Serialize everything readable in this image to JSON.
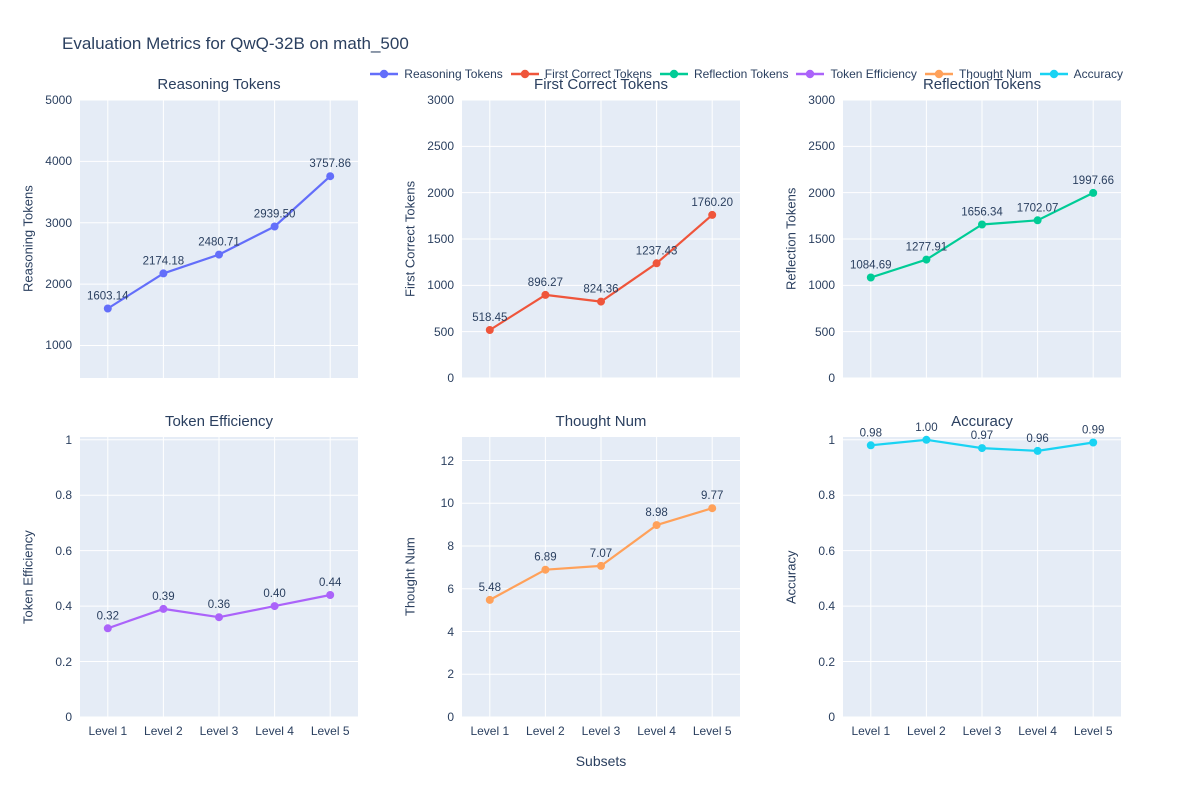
{
  "title": "Evaluation Metrics for QwQ-32B on math_500",
  "xaxis": {
    "title": "Subsets",
    "categories": [
      "Level 1",
      "Level 2",
      "Level 3",
      "Level 4",
      "Level 5"
    ]
  },
  "legend": {
    "items": [
      {
        "label": "Reasoning Tokens",
        "color": "#636EFA"
      },
      {
        "label": "First Correct Tokens",
        "color": "#EF553B"
      },
      {
        "label": "Reflection Tokens",
        "color": "#00CC96"
      },
      {
        "label": "Token Efficiency",
        "color": "#AB63FA"
      },
      {
        "label": "Thought Num",
        "color": "#FFA15A"
      },
      {
        "label": "Accuracy",
        "color": "#19D3F3"
      }
    ]
  },
  "colors": {
    "text": "#2a3f5f",
    "plot_background": "#E5ECF6",
    "gridline": "#ffffff",
    "page_background": "#ffffff"
  },
  "chart_data": [
    {
      "type": "line",
      "title": "Reasoning Tokens",
      "ylabel": "Reasoning Tokens",
      "color": "#636EFA",
      "categories": [
        "Level 1",
        "Level 2",
        "Level 3",
        "Level 4",
        "Level 5"
      ],
      "values": [
        1603.14,
        2174.18,
        2480.71,
        2939.5,
        3757.86
      ],
      "point_labels": [
        "1603.14",
        "2174.18",
        "2480.71",
        "2939.50",
        "3757.86"
      ],
      "ylim": [
        470,
        5000
      ],
      "yticks": [
        1000,
        2000,
        3000,
        4000,
        5000
      ],
      "grid": true,
      "legend_position": "top"
    },
    {
      "type": "line",
      "title": "First Correct Tokens",
      "ylabel": "First Correct Tokens",
      "color": "#EF553B",
      "categories": [
        "Level 1",
        "Level 2",
        "Level 3",
        "Level 4",
        "Level 5"
      ],
      "values": [
        518.45,
        896.27,
        824.36,
        1237.43,
        1760.2
      ],
      "point_labels": [
        "518.45",
        "896.27",
        "824.36",
        "1237.43",
        "1760.20"
      ],
      "ylim": [
        0,
        3000
      ],
      "yticks": [
        0,
        500,
        1000,
        1500,
        2000,
        2500,
        3000
      ],
      "grid": true,
      "legend_position": "top"
    },
    {
      "type": "line",
      "title": "Reflection Tokens",
      "ylabel": "Reflection Tokens",
      "color": "#00CC96",
      "categories": [
        "Level 1",
        "Level 2",
        "Level 3",
        "Level 4",
        "Level 5"
      ],
      "values": [
        1084.69,
        1277.91,
        1656.34,
        1702.07,
        1997.66
      ],
      "point_labels": [
        "1084.69",
        "1277.91",
        "1656.34",
        "1702.07",
        "1997.66"
      ],
      "ylim": [
        0,
        3000
      ],
      "yticks": [
        0,
        500,
        1000,
        1500,
        2000,
        2500,
        3000
      ],
      "grid": true,
      "legend_position": "top"
    },
    {
      "type": "line",
      "title": "Token Efficiency",
      "ylabel": "Token Efficiency",
      "color": "#AB63FA",
      "categories": [
        "Level 1",
        "Level 2",
        "Level 3",
        "Level 4",
        "Level 5"
      ],
      "values": [
        0.32,
        0.39,
        0.36,
        0.4,
        0.44
      ],
      "point_labels": [
        "0.32",
        "0.39",
        "0.36",
        "0.40",
        "0.44"
      ],
      "ylim": [
        0,
        1.01
      ],
      "yticks": [
        0,
        0.2,
        0.4,
        0.6,
        0.8,
        1
      ],
      "grid": true,
      "legend_position": "top"
    },
    {
      "type": "line",
      "title": "Thought Num",
      "ylabel": "Thought Num",
      "color": "#FFA15A",
      "categories": [
        "Level 1",
        "Level 2",
        "Level 3",
        "Level 4",
        "Level 5"
      ],
      "values": [
        5.48,
        6.89,
        7.07,
        8.98,
        9.77
      ],
      "point_labels": [
        "5.48",
        "6.89",
        "7.07",
        "8.98",
        "9.77"
      ],
      "ylim": [
        0,
        13.1
      ],
      "yticks": [
        0,
        2,
        4,
        6,
        8,
        10,
        12
      ],
      "grid": true,
      "legend_position": "top"
    },
    {
      "type": "line",
      "title": "Accuracy",
      "ylabel": "Accuracy",
      "color": "#19D3F3",
      "categories": [
        "Level 1",
        "Level 2",
        "Level 3",
        "Level 4",
        "Level 5"
      ],
      "values": [
        0.98,
        1.0,
        0.97,
        0.96,
        0.99
      ],
      "point_labels": [
        "0.98",
        "1.00",
        "0.97",
        "0.96",
        "0.99"
      ],
      "ylim": [
        0,
        1.01
      ],
      "yticks": [
        0,
        0.2,
        0.4,
        0.6,
        0.8,
        1
      ],
      "grid": true,
      "legend_position": "top"
    }
  ]
}
